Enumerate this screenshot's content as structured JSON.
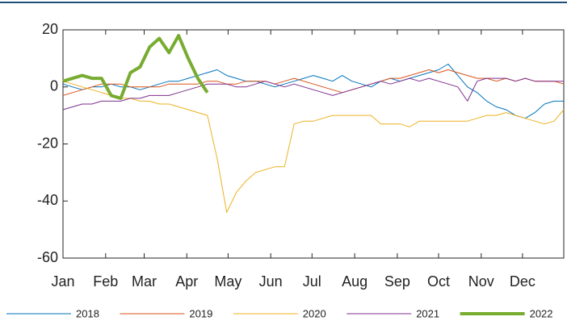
{
  "chart_data": {
    "type": "line",
    "x": [
      1,
      8,
      15,
      22,
      29,
      36,
      43,
      50,
      57,
      64,
      71,
      78,
      85,
      92,
      99,
      106,
      113,
      120,
      127,
      134,
      141,
      148,
      155,
      162,
      169,
      176,
      183,
      190,
      197,
      204,
      211,
      218,
      225,
      232,
      239,
      246,
      253,
      260,
      267,
      274,
      281,
      288,
      295,
      302,
      309,
      316,
      323,
      330,
      337,
      344,
      351,
      358,
      365
    ],
    "xlim": [
      1,
      365
    ],
    "xticks": [
      {
        "value": 1,
        "label": "Jan"
      },
      {
        "value": 32,
        "label": "Feb"
      },
      {
        "value": 60,
        "label": "Mar"
      },
      {
        "value": 91,
        "label": "Apr"
      },
      {
        "value": 121,
        "label": "May"
      },
      {
        "value": 152,
        "label": "Jun"
      },
      {
        "value": 182,
        "label": "Jul"
      },
      {
        "value": 213,
        "label": "Aug"
      },
      {
        "value": 244,
        "label": "Sep"
      },
      {
        "value": 274,
        "label": "Oct"
      },
      {
        "value": 305,
        "label": "Nov"
      },
      {
        "value": 335,
        "label": "Dec"
      }
    ],
    "ylim": [
      -60,
      20
    ],
    "yticks": [
      -60,
      -40,
      -20,
      0,
      20
    ],
    "grid": false,
    "legend": "bottom",
    "series": [
      {
        "name": "2018",
        "color": "#0072BD",
        "line_width": 1,
        "values": [
          1,
          0,
          -1,
          0,
          0,
          1,
          0,
          0,
          -1,
          0,
          1,
          2,
          2,
          3,
          4,
          5,
          6,
          4,
          3,
          2,
          2,
          1,
          0,
          1,
          2,
          3,
          4,
          3,
          2,
          4,
          2,
          1,
          0,
          2,
          3,
          2,
          3,
          4,
          5,
          6,
          8,
          4,
          0,
          -2,
          -5,
          -7,
          -8,
          -10,
          -11,
          -9,
          -6,
          -5,
          -5
        ]
      },
      {
        "name": "2019",
        "color": "#D95319",
        "line_width": 1,
        "values": [
          -3,
          -2,
          -1,
          0,
          1,
          1,
          1,
          0,
          0,
          0,
          0,
          1,
          1,
          1,
          1,
          2,
          2,
          1,
          1,
          2,
          2,
          2,
          1,
          2,
          3,
          2,
          1,
          0,
          -1,
          -2,
          -1,
          0,
          1,
          2,
          3,
          3,
          4,
          5,
          6,
          5,
          6,
          5,
          4,
          3,
          3,
          2,
          3,
          2,
          3,
          2,
          2,
          2,
          1
        ]
      },
      {
        "name": "2020",
        "color": "#EDB120",
        "line_width": 1,
        "values": [
          2,
          1,
          0,
          -1,
          -2,
          -3,
          -4,
          -4,
          -5,
          -5,
          -6,
          -6,
          -7,
          -8,
          -9,
          -10,
          -25,
          -44,
          -37,
          -33,
          -30,
          -29,
          -28,
          -28,
          -13,
          -12,
          -12,
          -11,
          -10,
          -10,
          -10,
          -10,
          -10,
          -13,
          -13,
          -13,
          -14,
          -12,
          -12,
          -12,
          -12,
          -12,
          -12,
          -11,
          -10,
          -10,
          -9,
          -10,
          -11,
          -12,
          -13,
          -12,
          -8
        ]
      },
      {
        "name": "2021",
        "color": "#7E2F8E",
        "line_width": 1,
        "values": [
          -8,
          -7,
          -6,
          -6,
          -5,
          -5,
          -5,
          -4,
          -4,
          -3,
          -3,
          -3,
          -2,
          -1,
          0,
          1,
          1,
          1,
          0,
          0,
          1,
          2,
          1,
          0,
          1,
          0,
          -1,
          -2,
          -3,
          -2,
          -1,
          0,
          1,
          2,
          1,
          2,
          3,
          2,
          3,
          2,
          1,
          0,
          -5,
          2,
          3,
          3,
          3,
          2,
          3,
          2,
          2,
          2,
          2
        ]
      },
      {
        "name": "2022",
        "color": "#77AC30",
        "line_width": 4,
        "values": [
          2,
          3,
          4,
          3,
          3,
          -3,
          -4,
          5,
          7,
          14,
          17,
          12,
          18,
          10,
          3,
          -2,
          null,
          null,
          null,
          null,
          null,
          null,
          null,
          null,
          null,
          null,
          null,
          null,
          null,
          null,
          null,
          null,
          null,
          null,
          null,
          null,
          null,
          null,
          null,
          null,
          null,
          null,
          null,
          null,
          null,
          null,
          null,
          null,
          null,
          null,
          null,
          null,
          null
        ]
      }
    ]
  }
}
